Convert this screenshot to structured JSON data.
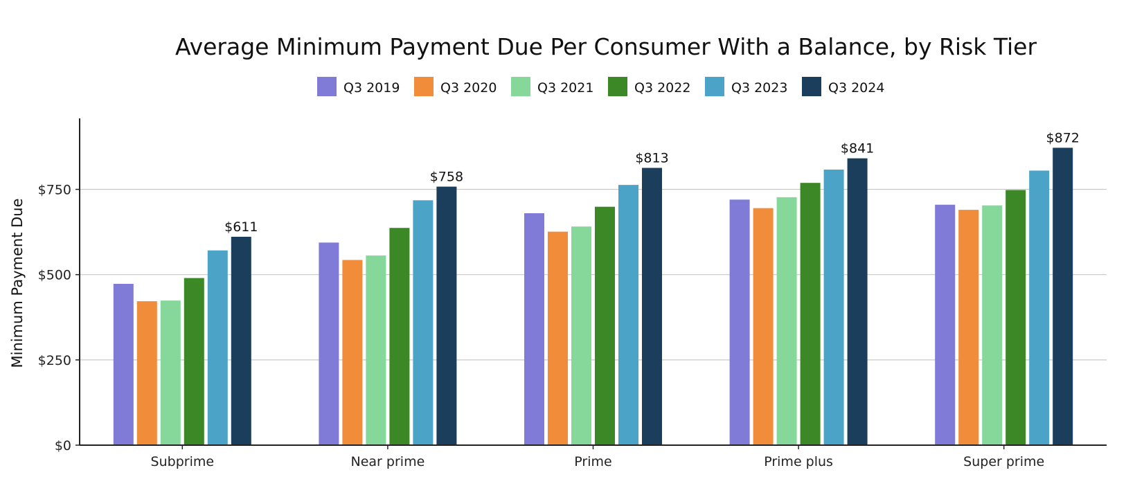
{
  "chart_data": {
    "type": "bar",
    "title": "Average Minimum Payment Due Per Consumer With a Balance, by Risk Tier",
    "xlabel": "",
    "ylabel": "Minimum Payment Due",
    "ylim": [
      0,
      950
    ],
    "yticks": [
      0,
      250,
      500,
      750
    ],
    "ytick_labels": [
      "$0",
      "$250",
      "$500",
      "$750"
    ],
    "grid": "horizontal",
    "legend_position": "top",
    "categories": [
      "Subprime",
      "Near prime",
      "Prime",
      "Prime plus",
      "Super prime"
    ],
    "series": [
      {
        "name": "Q3 2019",
        "color": "#7f7bd6",
        "values": [
          473,
          594,
          680,
          720,
          705
        ]
      },
      {
        "name": "Q3 2020",
        "color": "#f08c3a",
        "values": [
          422,
          543,
          626,
          695,
          690
        ]
      },
      {
        "name": "Q3 2021",
        "color": "#86d79a",
        "values": [
          424,
          556,
          641,
          727,
          703
        ]
      },
      {
        "name": "Q3 2022",
        "color": "#3c8726",
        "values": [
          490,
          637,
          699,
          769,
          748
        ]
      },
      {
        "name": "Q3 2023",
        "color": "#4ba3c7",
        "values": [
          571,
          718,
          763,
          808,
          805
        ]
      },
      {
        "name": "Q3 2024",
        "color": "#1a3e5c",
        "values": [
          611,
          758,
          813,
          841,
          872
        ]
      }
    ],
    "data_labels": [
      "$611",
      "$758",
      "$813",
      "$841",
      "$872"
    ]
  }
}
